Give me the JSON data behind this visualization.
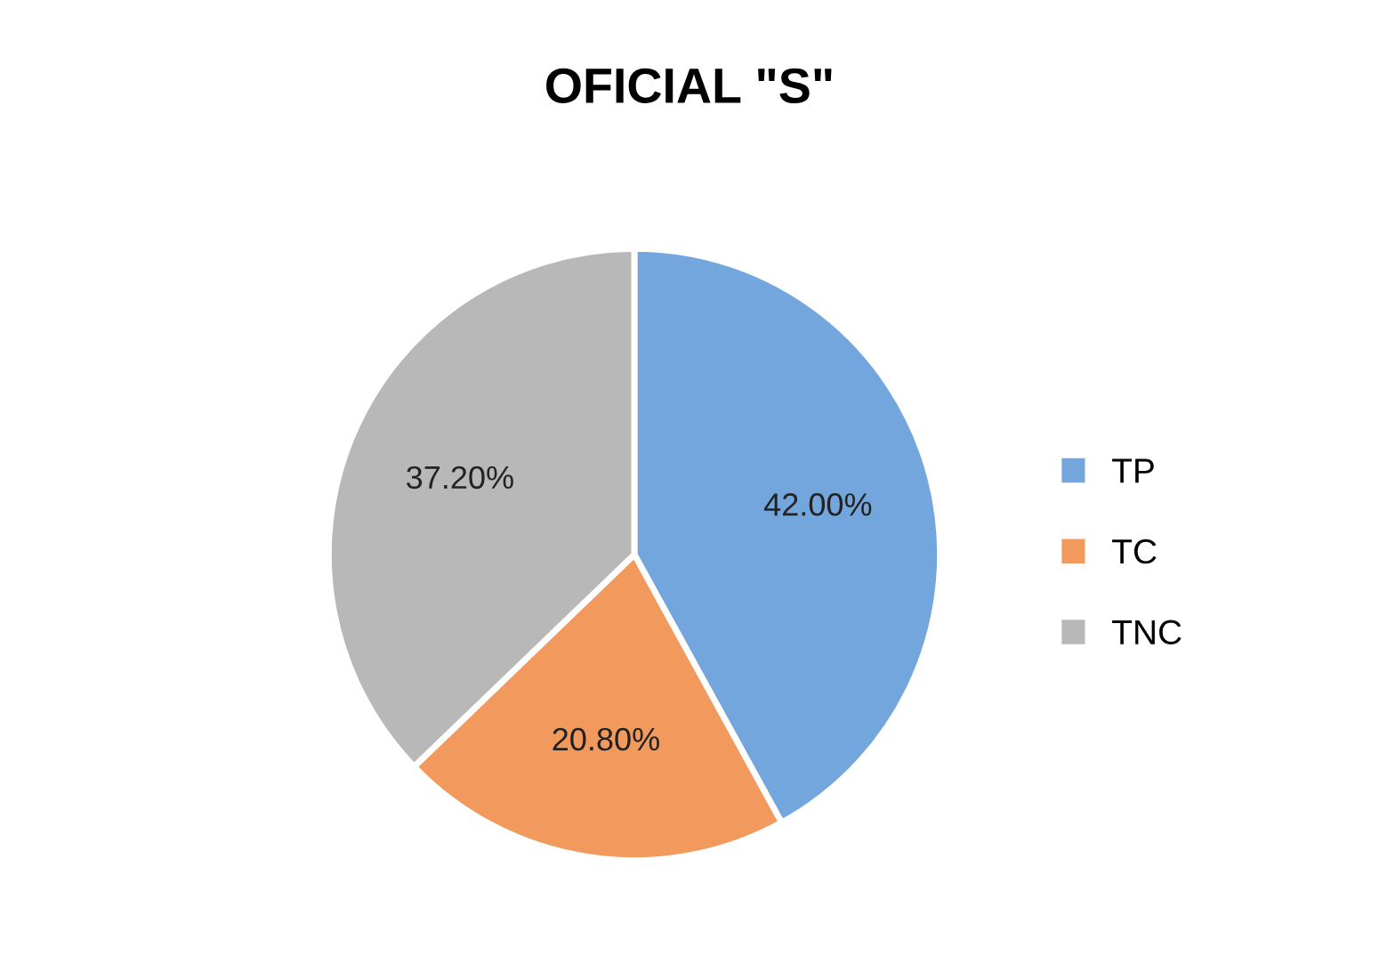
{
  "chart_data": {
    "type": "pie",
    "title": "OFICIAL \"S\"",
    "categories": [
      "TP",
      "TC",
      "TNC"
    ],
    "values": [
      42.0,
      20.8,
      37.2
    ],
    "value_labels": [
      "42.00%",
      "20.80%",
      "37.20%"
    ],
    "colors": [
      "#73a6dc",
      "#f29a5e",
      "#b8b8b8"
    ],
    "legend": "right"
  }
}
